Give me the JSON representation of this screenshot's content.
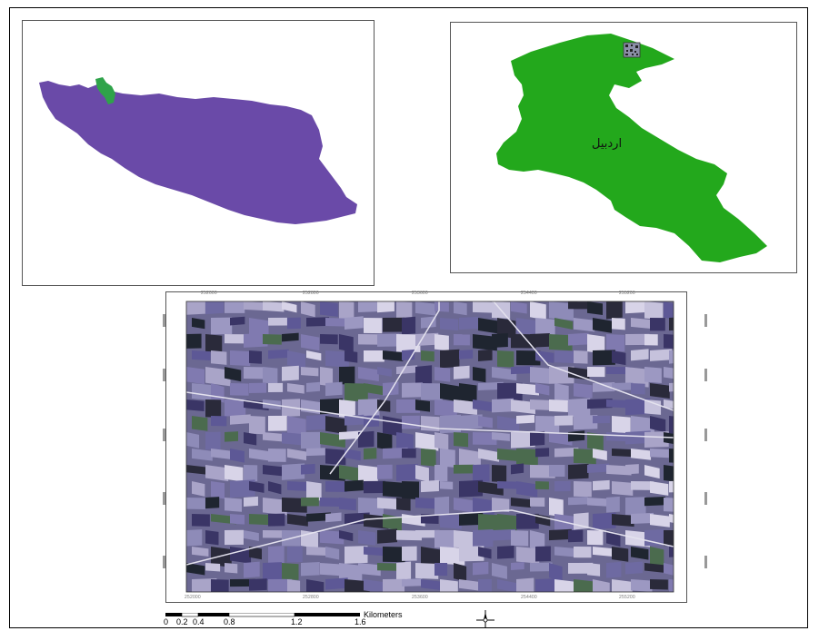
{
  "inset_map": {
    "region_label": "اردبیل"
  },
  "satellite": {
    "x_ticks_top": [
      "252000",
      "252800",
      "253600",
      "254400",
      "255200"
    ],
    "x_ticks_bottom": [
      "252000",
      "252800",
      "253600",
      "254400",
      "255200"
    ]
  },
  "scale_bar": {
    "ticks": [
      "0",
      "0.2",
      "0.4",
      "0.8",
      "1.2",
      "1.6"
    ],
    "unit": "Kilometers"
  },
  "colors": {
    "country_fill": "#6a4aa8",
    "province_fill": "#23a81c",
    "highlight": "#2fa34a"
  }
}
